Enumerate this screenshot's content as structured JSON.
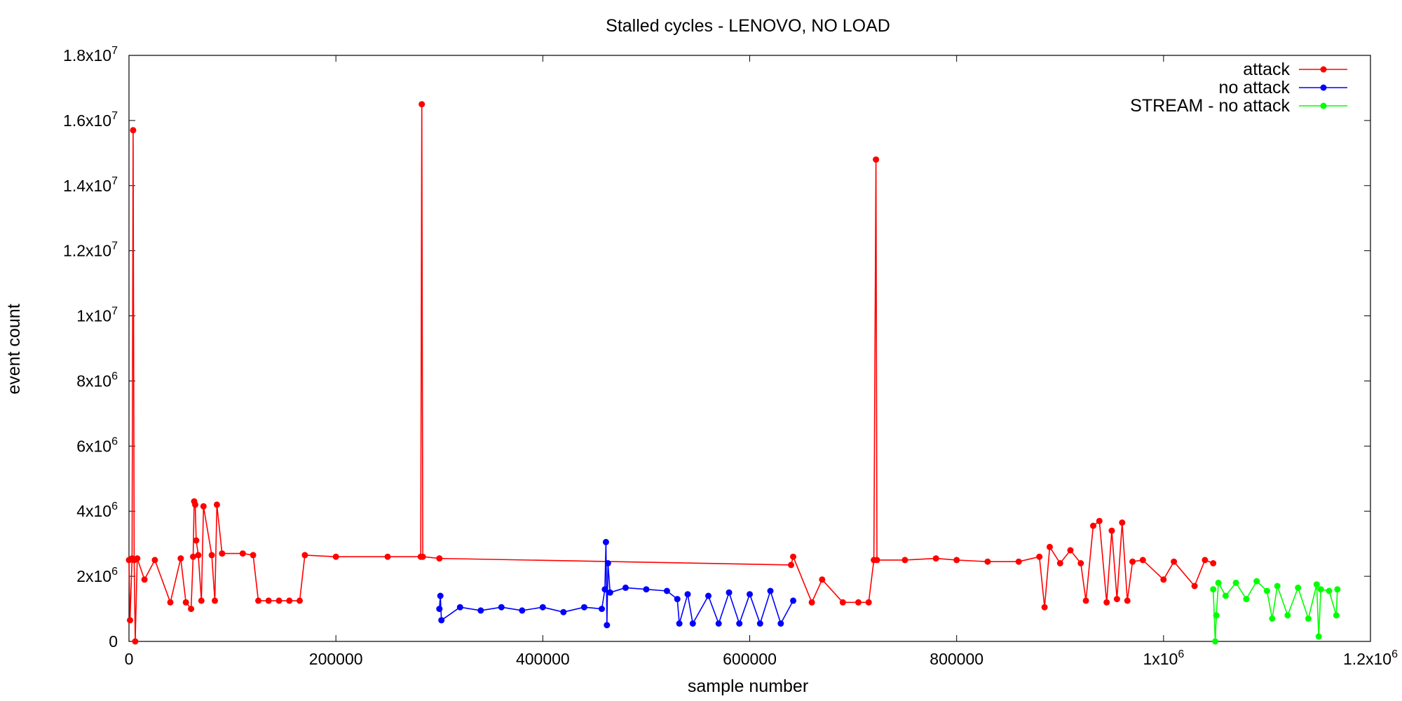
{
  "chart_data": {
    "type": "line",
    "title": "Stalled cycles - LENOVO, NO LOAD",
    "xlabel": "sample number",
    "ylabel": "event count",
    "xlim": [
      0,
      1200000
    ],
    "ylim": [
      0,
      18000000
    ],
    "x_ticks": [
      {
        "value": 0,
        "label": "0"
      },
      {
        "value": 200000,
        "label": "200000"
      },
      {
        "value": 400000,
        "label": "400000"
      },
      {
        "value": 600000,
        "label": "600000"
      },
      {
        "value": 800000,
        "label": "800000"
      },
      {
        "value": 1000000,
        "label": "1x10",
        "sup": "6"
      },
      {
        "value": 1200000,
        "label": "1.2x10",
        "sup": "6"
      }
    ],
    "y_ticks": [
      {
        "value": 0,
        "label": "0"
      },
      {
        "value": 2000000,
        "label": "2x10",
        "sup": "6"
      },
      {
        "value": 4000000,
        "label": "4x10",
        "sup": "6"
      },
      {
        "value": 6000000,
        "label": "6x10",
        "sup": "6"
      },
      {
        "value": 8000000,
        "label": "8x10",
        "sup": "6"
      },
      {
        "value": 10000000,
        "label": "1x10",
        "sup": "7"
      },
      {
        "value": 12000000,
        "label": "1.2x10",
        "sup": "7"
      },
      {
        "value": 14000000,
        "label": "1.4x10",
        "sup": "7"
      },
      {
        "value": 16000000,
        "label": "1.6x10",
        "sup": "7"
      },
      {
        "value": 18000000,
        "label": "1.8x10",
        "sup": "7"
      }
    ],
    "grid": false,
    "legend_position": "top-right",
    "series": [
      {
        "name": "attack",
        "color": "#ff0000",
        "points": [
          [
            0,
            2500000
          ],
          [
            1000,
            650000
          ],
          [
            3000,
            2550000
          ],
          [
            4000,
            15700000
          ],
          [
            5000,
            2500000
          ],
          [
            6000,
            0
          ],
          [
            8000,
            2550000
          ],
          [
            15000,
            1900000
          ],
          [
            25000,
            2500000
          ],
          [
            40000,
            1200000
          ],
          [
            50000,
            2550000
          ],
          [
            55000,
            1200000
          ],
          [
            60000,
            1000000
          ],
          [
            62000,
            2600000
          ],
          [
            63000,
            4300000
          ],
          [
            64000,
            4200000
          ],
          [
            65000,
            3100000
          ],
          [
            67000,
            2650000
          ],
          [
            70000,
            1250000
          ],
          [
            72000,
            4150000
          ],
          [
            80000,
            2650000
          ],
          [
            83000,
            1250000
          ],
          [
            85000,
            4200000
          ],
          [
            90000,
            2700000
          ],
          [
            110000,
            2700000
          ],
          [
            120000,
            2650000
          ],
          [
            125000,
            1250000
          ],
          [
            135000,
            1250000
          ],
          [
            145000,
            1250000
          ],
          [
            155000,
            1250000
          ],
          [
            165000,
            1250000
          ],
          [
            170000,
            2650000
          ],
          [
            200000,
            2600000
          ],
          [
            250000,
            2600000
          ],
          [
            282000,
            2600000
          ],
          [
            283000,
            16500000
          ],
          [
            284000,
            2600000
          ],
          [
            300000,
            2550000
          ],
          [
            640000,
            2350000
          ],
          [
            642000,
            2600000
          ],
          [
            660000,
            1200000
          ],
          [
            670000,
            1900000
          ],
          [
            690000,
            1200000
          ],
          [
            705000,
            1200000
          ],
          [
            715000,
            1200000
          ],
          [
            720000,
            2500000
          ],
          [
            722000,
            14800000
          ],
          [
            723000,
            2500000
          ],
          [
            750000,
            2500000
          ],
          [
            780000,
            2550000
          ],
          [
            800000,
            2500000
          ],
          [
            830000,
            2450000
          ],
          [
            860000,
            2450000
          ],
          [
            880000,
            2600000
          ],
          [
            885000,
            1050000
          ],
          [
            890000,
            2900000
          ],
          [
            900000,
            2400000
          ],
          [
            910000,
            2800000
          ],
          [
            920000,
            2400000
          ],
          [
            925000,
            1250000
          ],
          [
            932000,
            3550000
          ],
          [
            938000,
            3700000
          ],
          [
            945000,
            1200000
          ],
          [
            950000,
            3400000
          ],
          [
            955000,
            1300000
          ],
          [
            960000,
            3650000
          ],
          [
            965000,
            1250000
          ],
          [
            970000,
            2450000
          ],
          [
            980000,
            2500000
          ],
          [
            1000000,
            1900000
          ],
          [
            1010000,
            2450000
          ],
          [
            1030000,
            1700000
          ],
          [
            1040000,
            2500000
          ],
          [
            1048000,
            2400000
          ]
        ]
      },
      {
        "name": "no attack",
        "color": "#0000ff",
        "points": [
          [
            300000,
            1000000
          ],
          [
            301000,
            1400000
          ],
          [
            302000,
            650000
          ],
          [
            320000,
            1050000
          ],
          [
            340000,
            950000
          ],
          [
            360000,
            1050000
          ],
          [
            380000,
            950000
          ],
          [
            400000,
            1050000
          ],
          [
            420000,
            900000
          ],
          [
            440000,
            1050000
          ],
          [
            457000,
            1000000
          ],
          [
            460000,
            1600000
          ],
          [
            461000,
            3050000
          ],
          [
            462000,
            500000
          ],
          [
            463000,
            2400000
          ],
          [
            465000,
            1500000
          ],
          [
            480000,
            1650000
          ],
          [
            500000,
            1600000
          ],
          [
            520000,
            1550000
          ],
          [
            530000,
            1300000
          ],
          [
            532000,
            550000
          ],
          [
            540000,
            1450000
          ],
          [
            545000,
            550000
          ],
          [
            560000,
            1400000
          ],
          [
            570000,
            550000
          ],
          [
            580000,
            1500000
          ],
          [
            590000,
            550000
          ],
          [
            600000,
            1450000
          ],
          [
            610000,
            550000
          ],
          [
            620000,
            1550000
          ],
          [
            630000,
            550000
          ],
          [
            642000,
            1250000
          ]
        ]
      },
      {
        "name": "STREAM - no attack",
        "color": "#00ff00",
        "points": [
          [
            1048000,
            1600000
          ],
          [
            1050000,
            0
          ],
          [
            1051000,
            800000
          ],
          [
            1053000,
            1800000
          ],
          [
            1060000,
            1400000
          ],
          [
            1070000,
            1800000
          ],
          [
            1080000,
            1300000
          ],
          [
            1090000,
            1850000
          ],
          [
            1100000,
            1550000
          ],
          [
            1105000,
            700000
          ],
          [
            1110000,
            1700000
          ],
          [
            1120000,
            800000
          ],
          [
            1130000,
            1650000
          ],
          [
            1140000,
            700000
          ],
          [
            1148000,
            1750000
          ],
          [
            1150000,
            150000
          ],
          [
            1152000,
            1600000
          ],
          [
            1160000,
            1550000
          ],
          [
            1167000,
            800000
          ],
          [
            1168000,
            1600000
          ]
        ]
      }
    ]
  }
}
